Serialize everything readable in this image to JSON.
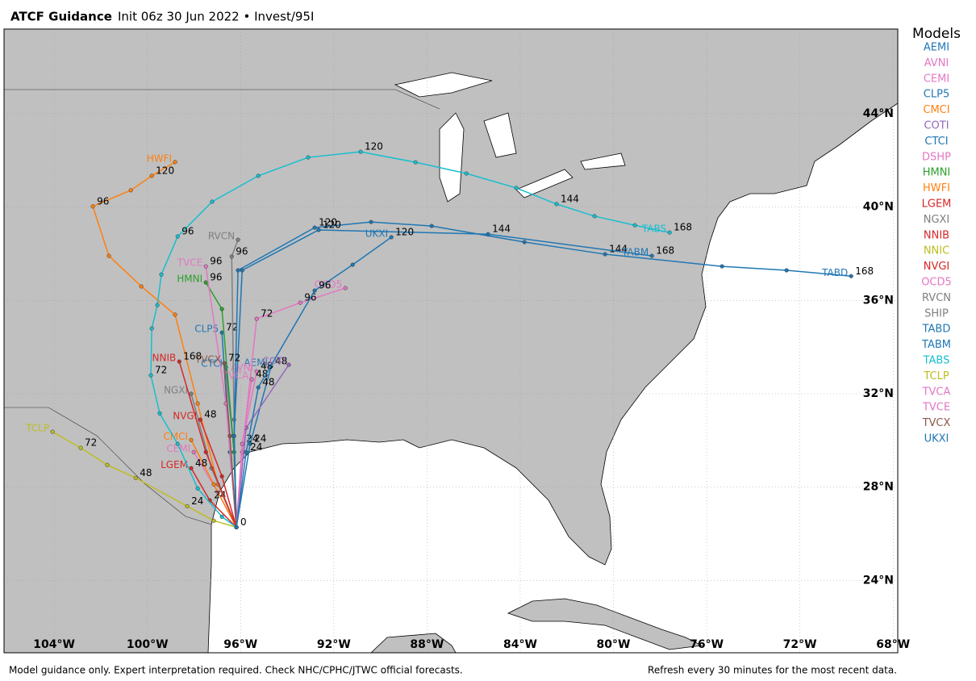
{
  "chart_data": {
    "type": "track",
    "title": "ATCF Guidance",
    "subtitle": "Init 06z 30 Jun 2022 • Invest/95I",
    "legend_title": "Models",
    "footer_left": "Model guidance only. Expert interpretation required. Check NHC/CPHC/JTWC official forecasts.",
    "footer_right": "Refresh every 30 minutes for the most recent data.",
    "xlim": [
      -106.15,
      -67.8
    ],
    "ylim": [
      20.9,
      47.63
    ],
    "grid": true,
    "xticks": [
      {
        "value": -104,
        "label": "104°W"
      },
      {
        "value": -100,
        "label": "100°W"
      },
      {
        "value": -96,
        "label": "96°W"
      },
      {
        "value": -92,
        "label": "92°W"
      },
      {
        "value": -88,
        "label": "88°W"
      },
      {
        "value": -84,
        "label": "84°W"
      },
      {
        "value": -80,
        "label": "80°W"
      },
      {
        "value": -76,
        "label": "76°W"
      },
      {
        "value": -72,
        "label": "72°W"
      },
      {
        "value": -68,
        "label": "68°W"
      }
    ],
    "yticks": [
      {
        "value": 24,
        "label": "24°N"
      },
      {
        "value": 28,
        "label": "28°N"
      },
      {
        "value": 32,
        "label": "32°N"
      },
      {
        "value": 36,
        "label": "36°N"
      },
      {
        "value": 40,
        "label": "40°N"
      },
      {
        "value": 44,
        "label": "44°N"
      }
    ],
    "series": [
      {
        "name": "AEMI",
        "color": "#1f77b4",
        "lat": [
          26.28,
          29.85,
          33.17
        ],
        "lon": [
          -96.18,
          -95.59,
          -94.69
        ],
        "hours": [
          null,
          24,
          48
        ]
      },
      {
        "name": "AVNI",
        "color": "#e377c2",
        "lat": [
          26.28,
          29.85,
          32.96
        ],
        "lon": [
          -96.18,
          -95.93,
          -95.31
        ],
        "hours": [
          null,
          null,
          48
        ]
      },
      {
        "name": "CEMI",
        "color": "#e377c2",
        "lat": [
          26.28,
          27.77,
          29.5
        ],
        "lon": [
          -96.18,
          -96.97,
          -98.01
        ],
        "hours": [
          null,
          null,
          null
        ]
      },
      {
        "name": "CLP5",
        "color": "#1f77b4",
        "lat": [
          26.28,
          29.5,
          34.62
        ],
        "lon": [
          -96.18,
          -96.46,
          -96.8
        ],
        "hours": [
          null,
          null,
          72
        ]
      },
      {
        "name": "CMCI",
        "color": "#ff7f0e",
        "lat": [
          26.28,
          28.12,
          30.02
        ],
        "lon": [
          -96.18,
          -97.15,
          -98.12
        ],
        "hours": [
          null,
          null,
          null
        ]
      },
      {
        "name": "COTI",
        "color": "#9467bd",
        "lat": [
          26.28,
          30.54,
          33.24
        ],
        "lon": [
          -96.18,
          -95.76,
          -93.93
        ],
        "hours": [
          null,
          null,
          null
        ]
      },
      {
        "name": "CTCI",
        "color": "#1f77b4",
        "lat": [
          26.28,
          29.5,
          33.14
        ],
        "lon": [
          -96.18,
          -96.28,
          -96.63
        ],
        "hours": [
          null,
          null,
          null
        ]
      },
      {
        "name": "DSHP",
        "color": "#e377c2",
        "lat": [],
        "lon": [],
        "hours": []
      },
      {
        "name": "HMNI",
        "color": "#2ca02c",
        "lat": [
          26.28,
          29.5,
          35.63,
          36.77
        ],
        "lon": [
          -96.18,
          -96.28,
          -96.8,
          -97.49
        ],
        "hours": [
          null,
          null,
          null,
          96
        ]
      },
      {
        "name": "HWFI",
        "color": "#ff7f0e",
        "lat": [
          26.28,
          28.11,
          31.58,
          35.39,
          36.6,
          37.91,
          40.03,
          40.72,
          41.34,
          41.93
        ],
        "lon": [
          -96.18,
          -96.97,
          -97.84,
          -98.81,
          -100.26,
          -101.65,
          -102.34,
          -100.71,
          -99.81,
          -98.81
        ],
        "hours": [
          null,
          null,
          null,
          null,
          null,
          null,
          96,
          null,
          120,
          null
        ]
      },
      {
        "name": "LGEM",
        "color": "#d62728",
        "lat": [
          26.28,
          27.43,
          28.81
        ],
        "lon": [
          -96.18,
          -97.32,
          -98.12
        ],
        "hours": [
          null,
          24,
          48
        ]
      },
      {
        "name": "NGXI",
        "color": "#7f7f7f",
        "lat": [
          26.28,
          28.81,
          32.0
        ],
        "lon": [
          -96.18,
          -97.25,
          -98.12
        ],
        "hours": [
          null,
          null,
          null
        ]
      },
      {
        "name": "NNIB",
        "color": "#d62728",
        "lat": [
          26.28,
          29.5,
          33.38
        ],
        "lon": [
          -96.18,
          -97.49,
          -98.63
        ],
        "hours": [
          null,
          null,
          168
        ]
      },
      {
        "name": "NNIC",
        "color": "#bcbd22",
        "lat": [],
        "lon": [],
        "hours": []
      },
      {
        "name": "NVGI",
        "color": "#d62728",
        "lat": [
          26.28,
          28.46,
          30.89
        ],
        "lon": [
          -96.18,
          -96.8,
          -97.73
        ],
        "hours": [
          null,
          null,
          48
        ]
      },
      {
        "name": "OCD5",
        "color": "#e377c2",
        "lat": [
          26.28,
          29.5,
          35.21,
          35.9,
          36.53
        ],
        "lon": [
          -96.18,
          -95.93,
          -95.31,
          -93.44,
          -91.5
        ],
        "hours": [
          0,
          null,
          72,
          96,
          null
        ]
      },
      {
        "name": "RVCN",
        "color": "#7f7f7f",
        "lat": [
          26.28,
          30.89,
          37.88,
          38.6
        ],
        "lon": [
          -96.18,
          -96.28,
          -96.38,
          -96.11
        ],
        "hours": [
          null,
          null,
          96,
          null
        ]
      },
      {
        "name": "SHIP",
        "color": "#7f7f7f",
        "lat": [],
        "lon": [],
        "hours": []
      },
      {
        "name": "TABD",
        "color": "#1f77b4",
        "lat": [
          26.28,
          30.19,
          37.29,
          39.12,
          39.36,
          39.19,
          38.5,
          37.98,
          37.46,
          37.29,
          37.04
        ],
        "lon": [
          -96.18,
          -96.28,
          -96.11,
          -92.82,
          -90.4,
          -87.8,
          -83.82,
          -80.36,
          -75.34,
          -72.57,
          -69.8
        ],
        "hours": [
          null,
          null,
          null,
          120,
          null,
          null,
          null,
          144,
          null,
          null,
          168
        ]
      },
      {
        "name": "TABM",
        "color": "#1f77b4",
        "lat": [
          26.28,
          30.19,
          37.29,
          39.02,
          38.84,
          37.91
        ],
        "lon": [
          -96.18,
          -96.28,
          -95.93,
          -92.65,
          -85.38,
          -78.35
        ],
        "hours": [
          null,
          null,
          null,
          120,
          144,
          168
        ]
      },
      {
        "name": "TABS",
        "color": "#17becf",
        "lat": [
          26.28,
          26.73,
          27.94,
          29.85,
          31.16,
          32.79,
          34.8,
          35.8,
          37.11,
          38.74,
          40.23,
          41.34,
          42.13,
          42.37,
          41.92,
          41.44,
          40.82,
          40.13,
          39.61,
          39.22,
          38.91
        ],
        "lon": [
          -96.18,
          -96.8,
          -97.84,
          -98.7,
          -99.47,
          -99.85,
          -99.81,
          -99.57,
          -99.4,
          -98.7,
          -97.22,
          -95.24,
          -93.1,
          -90.85,
          -88.49,
          -86.31,
          -84.17,
          -82.44,
          -80.81,
          -79.08,
          -77.59
        ],
        "hours": [
          null,
          null,
          null,
          null,
          null,
          72,
          null,
          null,
          null,
          96,
          null,
          null,
          null,
          120,
          null,
          null,
          null,
          144,
          null,
          null,
          168
        ]
      },
      {
        "name": "TCLP",
        "color": "#bcbd22",
        "lat": [
          26.28,
          26.56,
          27.18,
          28.39,
          28.95,
          29.68,
          30.37
        ],
        "lon": [
          -96.18,
          -97.15,
          -98.29,
          -100.5,
          -101.72,
          -102.86,
          -104.07
        ],
        "hours": [
          null,
          null,
          24,
          48,
          null,
          72,
          null
        ]
      },
      {
        "name": "TVCA",
        "color": "#e377c2",
        "lat": [
          26.28,
          29.85,
          32.62
        ],
        "lon": [
          -96.18,
          -95.93,
          -95.52
        ],
        "hours": [
          null,
          24,
          48
        ]
      },
      {
        "name": "TVCE",
        "color": "#e377c2",
        "lat": [
          26.28,
          31.58,
          37.46
        ],
        "lon": [
          -96.18,
          -96.63,
          -97.49
        ],
        "hours": [
          null,
          null,
          96
        ]
      },
      {
        "name": "TVCX",
        "color": "#8c564b",
        "lat": [
          26.28,
          30.19,
          33.31
        ],
        "lon": [
          -96.18,
          -96.46,
          -96.7
        ],
        "hours": [
          null,
          null,
          72
        ]
      },
      {
        "name": "UKXI",
        "color": "#1f77b4",
        "lat": [
          26.28,
          29.5,
          32.27,
          36.42,
          37.53,
          38.71
        ],
        "lon": [
          -96.18,
          -95.76,
          -95.24,
          -92.82,
          -91.19,
          -89.53
        ],
        "hours": [
          null,
          24,
          48,
          96,
          null,
          120
        ]
      }
    ]
  }
}
